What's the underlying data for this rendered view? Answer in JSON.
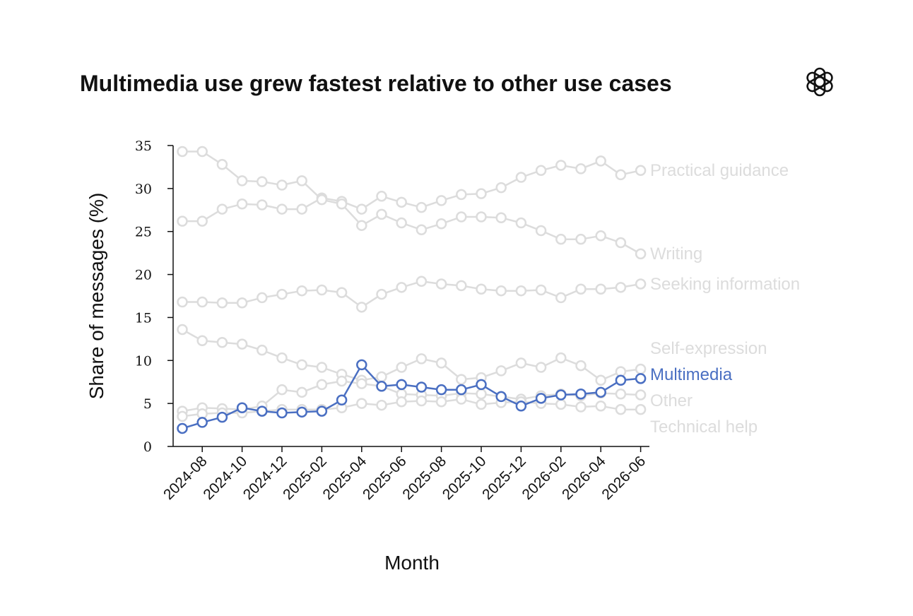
{
  "header": {
    "title": "Multimedia use grew fastest relative to other use cases"
  },
  "logo": {
    "icon": "openai-logo-icon"
  },
  "chart_data": {
    "type": "line",
    "title": "Multimedia use grew fastest relative to other use cases",
    "xlabel": "Month",
    "ylabel": "Share of messages (%)",
    "ylim": [
      0,
      35
    ],
    "yticks": [
      0,
      5,
      10,
      15,
      20,
      25,
      30,
      35
    ],
    "grid": false,
    "legend": "direct labels at right end of lines",
    "x": [
      "2024-07",
      "2024-08",
      "2024-09",
      "2024-10",
      "2024-11",
      "2024-12",
      "2025-01",
      "2025-02",
      "2025-03",
      "2025-04",
      "2025-05",
      "2025-06",
      "2025-07",
      "2025-08",
      "2025-09",
      "2025-10",
      "2025-11",
      "2025-12",
      "2026-01",
      "2026-02",
      "2026-03",
      "2026-04",
      "2026-05",
      "2026-06"
    ],
    "xticks": [
      "2024-08",
      "2024-10",
      "2024-12",
      "2025-02",
      "2025-04",
      "2025-06",
      "2025-08",
      "2025-10",
      "2025-12",
      "2026-02",
      "2026-04",
      "2026-06"
    ],
    "highlight_color": "#4a6fc2",
    "muted_color": "#dcdcdc",
    "series": [
      {
        "name": "Practical guidance",
        "highlight": false,
        "values": [
          26.2,
          26.2,
          27.6,
          28.2,
          28.1,
          27.6,
          27.6,
          28.9,
          28.5,
          27.6,
          29.1,
          28.4,
          27.8,
          28.6,
          29.3,
          29.4,
          30.1,
          31.3,
          32.1,
          32.7,
          32.3,
          33.2,
          31.6,
          32.1
        ]
      },
      {
        "name": "Writing",
        "highlight": false,
        "values": [
          34.3,
          34.3,
          32.8,
          30.9,
          30.8,
          30.4,
          30.9,
          28.7,
          28.2,
          25.7,
          27.0,
          26.0,
          25.2,
          25.9,
          26.7,
          26.7,
          26.6,
          26.0,
          25.1,
          24.1,
          24.1,
          24.5,
          23.7,
          22.4
        ]
      },
      {
        "name": "Seeking information",
        "highlight": false,
        "values": [
          16.8,
          16.8,
          16.7,
          16.7,
          17.3,
          17.7,
          18.1,
          18.2,
          17.9,
          16.2,
          17.7,
          18.5,
          19.2,
          18.9,
          18.7,
          18.3,
          18.1,
          18.1,
          18.2,
          17.3,
          18.3,
          18.3,
          18.5,
          18.9
        ]
      },
      {
        "name": "Self-expression",
        "highlight": false,
        "values": [
          13.6,
          12.3,
          12.1,
          11.9,
          11.2,
          10.3,
          9.5,
          9.2,
          8.4,
          7.7,
          8.1,
          9.2,
          10.2,
          9.7,
          7.8,
          8.0,
          8.8,
          9.7,
          9.2,
          10.3,
          9.4,
          7.7,
          8.7,
          9.0
        ]
      },
      {
        "name": "Multimedia",
        "highlight": true,
        "values": [
          2.1,
          2.8,
          3.4,
          4.5,
          4.1,
          3.9,
          4.0,
          4.1,
          5.4,
          9.5,
          7.0,
          7.2,
          6.9,
          6.6,
          6.6,
          7.2,
          5.8,
          4.7,
          5.6,
          6.0,
          6.1,
          6.3,
          7.7,
          7.9
        ]
      },
      {
        "name": "Other",
        "highlight": false,
        "values": [
          4.1,
          4.5,
          4.4,
          4.3,
          4.7,
          6.6,
          6.3,
          7.2,
          7.6,
          7.3,
          7.0,
          6.1,
          6.0,
          5.9,
          6.2,
          6.1,
          5.8,
          5.5,
          5.9,
          6.1,
          5.9,
          6.2,
          6.1,
          6.0
        ]
      },
      {
        "name": "Technical help",
        "highlight": false,
        "values": [
          3.5,
          3.8,
          3.9,
          3.9,
          4.1,
          4.3,
          4.3,
          4.3,
          4.5,
          5.0,
          4.8,
          5.2,
          5.3,
          5.2,
          5.5,
          4.9,
          5.1,
          5.2,
          5.0,
          4.9,
          4.6,
          4.7,
          4.3,
          4.3
        ]
      }
    ]
  }
}
